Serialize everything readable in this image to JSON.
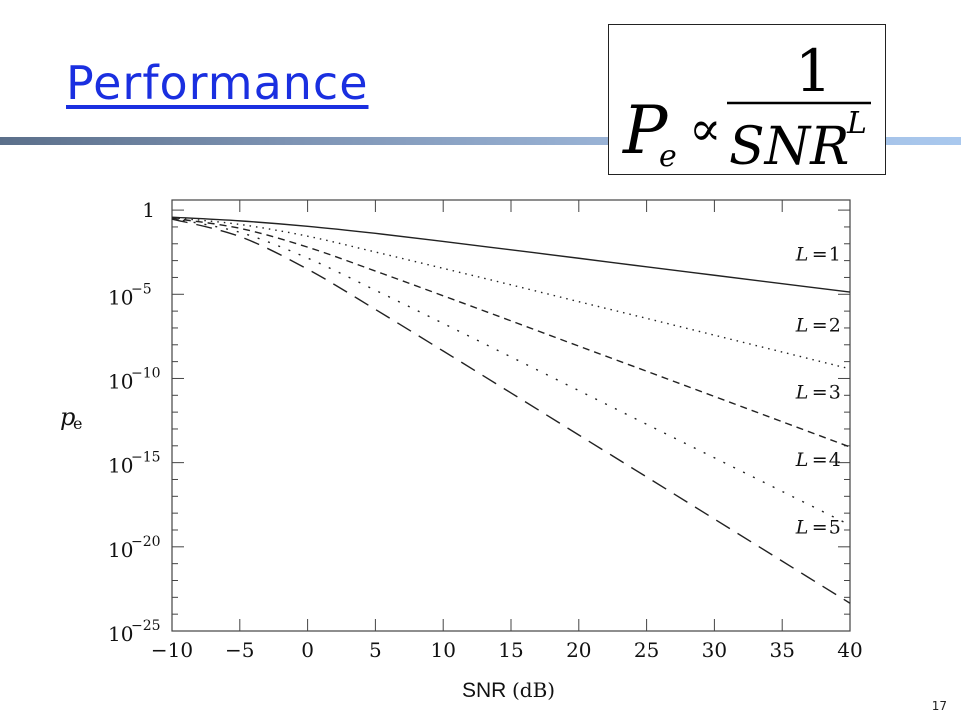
{
  "slide": {
    "title": "Performance",
    "page_number": "17",
    "formula": {
      "lhs_main": "P",
      "lhs_sub": "e",
      "relation": "∝",
      "numerator": "1",
      "denominator_main": "SNR",
      "denominator_sup": "L"
    }
  },
  "chart_data": {
    "type": "line",
    "xlabel_main": "SNR",
    "xlabel_unit": "(dB)",
    "ylabel_main": "p",
    "ylabel_sub": "e",
    "xlim": [
      -10,
      40
    ],
    "ylim_log10": [
      -25,
      1
    ],
    "y_scale": "log",
    "grid": false,
    "x_ticks": [
      "−10",
      "−5",
      "0",
      "5",
      "10",
      "15",
      "20",
      "25",
      "30",
      "35",
      "40"
    ],
    "x_tick_values": [
      -10,
      -5,
      0,
      5,
      10,
      15,
      20,
      25,
      30,
      35,
      40
    ],
    "y_ticks": [
      {
        "value": 0,
        "base": "1",
        "exp": ""
      },
      {
        "value": -5,
        "base": "10",
        "exp": "−5"
      },
      {
        "value": -10,
        "base": "10",
        "exp": "−10"
      },
      {
        "value": -15,
        "base": "10",
        "exp": "−15"
      },
      {
        "value": -20,
        "base": "10",
        "exp": "−20"
      },
      {
        "value": -25,
        "base": "10",
        "exp": "−25"
      }
    ],
    "series": [
      {
        "name": "L = 1",
        "label_L": "L",
        "label_val": "1",
        "style": "solid",
        "x": [
          -10,
          -5,
          0,
          5,
          10,
          15,
          20,
          25,
          30,
          35,
          40
        ],
        "log10_pe": [
          -0.42,
          -0.64,
          -0.96,
          -1.38,
          -1.86,
          -2.36,
          -2.86,
          -3.37,
          -3.87,
          -4.37,
          -4.87
        ]
      },
      {
        "name": "L = 2",
        "label_L": "L",
        "label_val": "2",
        "style": "dotted",
        "x": [
          -10,
          -5,
          0,
          5,
          10,
          15,
          20,
          25,
          30,
          35,
          40
        ],
        "log10_pe": [
          -0.45,
          -0.85,
          -1.55,
          -2.49,
          -3.46,
          -4.44,
          -5.44,
          -6.43,
          -7.43,
          -8.43,
          -9.43
        ]
      },
      {
        "name": "L = 3",
        "label_L": "L",
        "label_val": "3",
        "style": "dashed",
        "x": [
          -10,
          -5,
          0,
          5,
          10,
          15,
          20,
          25,
          30,
          35,
          40
        ],
        "log10_pe": [
          -0.48,
          -1.08,
          -2.2,
          -3.62,
          -5.09,
          -6.58,
          -8.08,
          -9.57,
          -11.07,
          -12.57,
          -14.07
        ]
      },
      {
        "name": "L = 4",
        "label_L": "L",
        "label_val": "4",
        "style": "dashdot",
        "x": [
          -10,
          -5,
          0,
          5,
          10,
          15,
          20,
          25,
          30,
          35,
          40
        ],
        "log10_pe": [
          -0.5,
          -1.32,
          -2.85,
          -4.76,
          -6.73,
          -8.72,
          -10.72,
          -12.72,
          -14.71,
          -16.71,
          -18.71
        ]
      },
      {
        "name": "L = 5",
        "label_L": "L",
        "label_val": "5",
        "style": "longdash",
        "x": [
          -10,
          -5,
          0,
          5,
          10,
          15,
          20,
          25,
          30,
          35,
          40
        ],
        "log10_pe": [
          -0.53,
          -1.57,
          -3.51,
          -5.9,
          -8.37,
          -10.86,
          -13.36,
          -15.85,
          -18.35,
          -20.85,
          -23.35
        ]
      }
    ],
    "label_positions_x": [
      36,
      36,
      36,
      36,
      36
    ],
    "label_positions_log10": [
      -3.0,
      -7.2,
      -11.2,
      -15.2,
      -19.2
    ]
  }
}
